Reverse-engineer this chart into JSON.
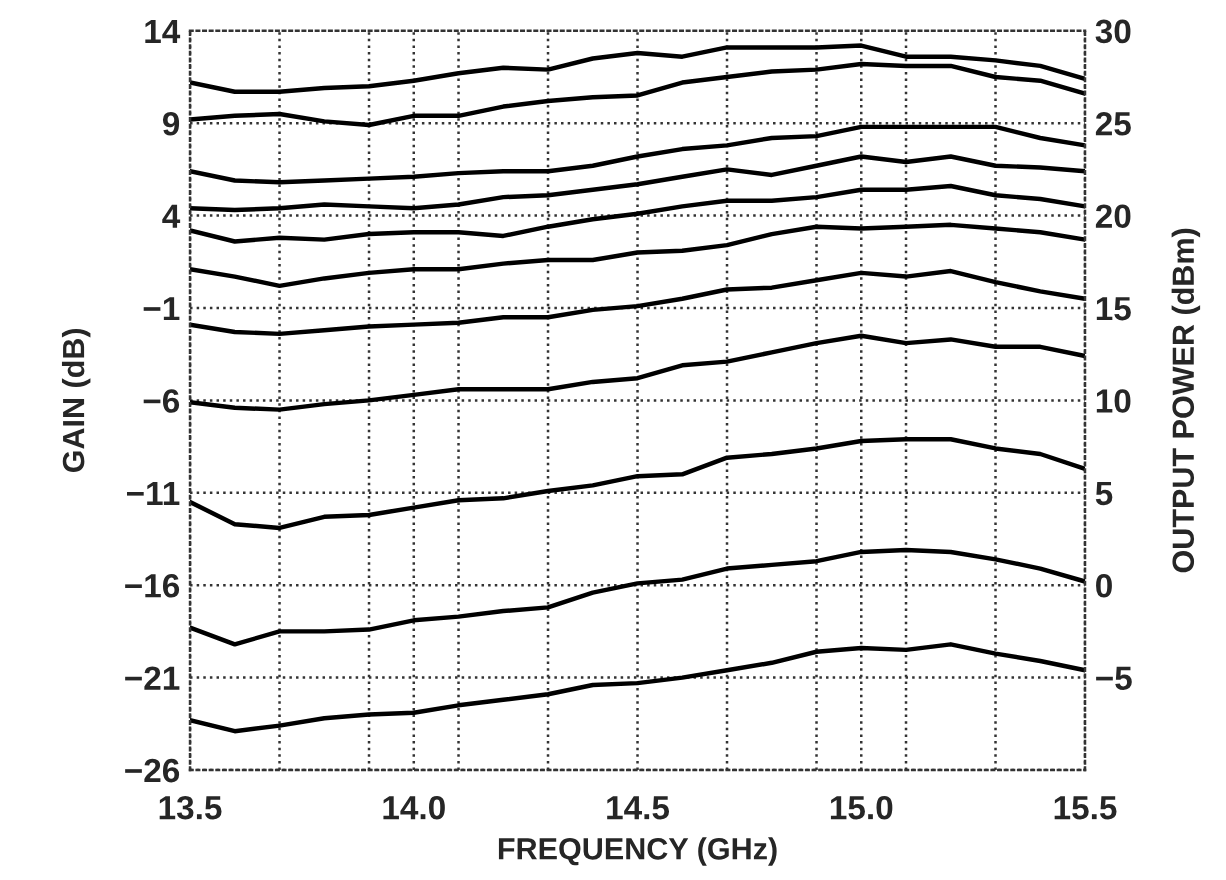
{
  "chart_data": {
    "type": "line",
    "xlabel": "FREQUENCY (GHz)",
    "ylabel": "GAIN (dB)",
    "y2label": "OUTPUT POWER (dBm)",
    "x": [
      13.5,
      13.6,
      13.7,
      13.8,
      13.9,
      14.0,
      14.1,
      14.2,
      14.3,
      14.4,
      14.5,
      14.6,
      14.7,
      14.8,
      14.9,
      15.0,
      15.1,
      15.2,
      15.3,
      15.4,
      15.5
    ],
    "series": [
      {
        "color": "#000000",
        "values": [
          11.2,
          10.7,
          10.7,
          10.9,
          11.0,
          11.3,
          11.7,
          12.0,
          11.9,
          12.5,
          12.8,
          12.6,
          13.1,
          13.1,
          13.1,
          13.2,
          12.6,
          12.6,
          12.4,
          12.1,
          11.4
        ]
      },
      {
        "color": "#000000",
        "values": [
          9.2,
          9.4,
          9.5,
          9.1,
          8.9,
          9.4,
          9.4,
          9.9,
          10.2,
          10.4,
          10.5,
          11.2,
          11.5,
          11.8,
          11.9,
          12.2,
          12.1,
          12.1,
          11.5,
          11.3,
          10.6
        ]
      },
      {
        "color": "#000000",
        "values": [
          6.4,
          5.9,
          5.8,
          5.9,
          6.0,
          6.1,
          6.3,
          6.4,
          6.4,
          6.7,
          7.2,
          7.6,
          7.8,
          8.2,
          8.3,
          8.8,
          8.8,
          8.8,
          8.8,
          8.2,
          7.8
        ]
      },
      {
        "color": "#000000",
        "values": [
          4.4,
          4.3,
          4.4,
          4.6,
          4.5,
          4.4,
          4.6,
          5.0,
          5.1,
          5.4,
          5.7,
          6.1,
          6.5,
          6.2,
          6.7,
          7.2,
          6.9,
          7.2,
          6.7,
          6.6,
          6.4
        ]
      },
      {
        "color": "#000000",
        "values": [
          3.2,
          2.6,
          2.8,
          2.7,
          3.0,
          3.1,
          3.1,
          2.9,
          3.4,
          3.8,
          4.1,
          4.5,
          4.8,
          4.8,
          5.0,
          5.4,
          5.4,
          5.6,
          5.1,
          4.9,
          4.5
        ]
      },
      {
        "color": "#000000",
        "values": [
          1.1,
          0.7,
          0.2,
          0.6,
          0.9,
          1.1,
          1.1,
          1.4,
          1.6,
          1.6,
          2.0,
          2.1,
          2.4,
          3.0,
          3.4,
          3.3,
          3.4,
          3.5,
          3.3,
          3.1,
          2.7
        ]
      },
      {
        "color": "#000000",
        "values": [
          -1.9,
          -2.3,
          -2.4,
          -2.2,
          -2.0,
          -1.9,
          -1.8,
          -1.5,
          -1.5,
          -1.1,
          -0.9,
          -0.5,
          0.0,
          0.1,
          0.5,
          0.9,
          0.7,
          1.0,
          0.4,
          -0.1,
          -0.5
        ]
      },
      {
        "color": "#000000",
        "values": [
          -6.1,
          -6.4,
          -6.5,
          -6.2,
          -6.0,
          -5.7,
          -5.4,
          -5.4,
          -5.4,
          -5.0,
          -4.8,
          -4.1,
          -3.9,
          -3.4,
          -2.9,
          -2.5,
          -2.9,
          -2.7,
          -3.1,
          -3.1,
          -3.6
        ]
      },
      {
        "color": "#000000",
        "values": [
          -11.5,
          -12.7,
          -12.9,
          -12.3,
          -12.2,
          -11.8,
          -11.4,
          -11.3,
          -10.9,
          -10.6,
          -10.1,
          -10.0,
          -9.1,
          -8.9,
          -8.6,
          -8.2,
          -8.1,
          -8.1,
          -8.6,
          -8.9,
          -9.7
        ]
      },
      {
        "color": "#000000",
        "values": [
          -18.3,
          -19.2,
          -18.5,
          -18.5,
          -18.4,
          -17.9,
          -17.7,
          -17.4,
          -17.2,
          -16.4,
          -15.9,
          -15.7,
          -15.1,
          -14.9,
          -14.7,
          -14.2,
          -14.1,
          -14.2,
          -14.6,
          -15.1,
          -15.8
        ]
      },
      {
        "color": "#000000",
        "values": [
          -23.3,
          -23.9,
          -23.6,
          -23.2,
          -23.0,
          -22.9,
          -22.5,
          -22.2,
          -21.9,
          -21.4,
          -21.3,
          -21.0,
          -20.6,
          -20.2,
          -19.6,
          -19.4,
          -19.5,
          -19.2,
          -19.7,
          -20.1,
          -20.6
        ]
      }
    ],
    "xlim": [
      13.5,
      15.5
    ],
    "xticks": [
      {
        "value": 13.5,
        "label": "13.5"
      },
      {
        "value": 13.7,
        "label": null
      },
      {
        "value": 13.9,
        "label": null
      },
      {
        "value": 14.0,
        "label": "14.0"
      },
      {
        "value": 14.1,
        "label": null
      },
      {
        "value": 14.3,
        "label": null
      },
      {
        "value": 14.5,
        "label": "14.5"
      },
      {
        "value": 14.7,
        "label": null
      },
      {
        "value": 14.9,
        "label": null
      },
      {
        "value": 15.0,
        "label": "15.0"
      },
      {
        "value": 15.1,
        "label": null
      },
      {
        "value": 15.3,
        "label": null
      },
      {
        "value": 15.5,
        "label": "15.5"
      }
    ],
    "ylim": [
      -26,
      14
    ],
    "yticks": [
      {
        "value": 14,
        "label": "14"
      },
      {
        "value": 9,
        "label": "9"
      },
      {
        "value": 4,
        "label": "4"
      },
      {
        "value": -1,
        "label": "−1"
      },
      {
        "value": -6,
        "label": "−6"
      },
      {
        "value": -11,
        "label": "−11"
      },
      {
        "value": -16,
        "label": "−16"
      },
      {
        "value": -21,
        "label": "−21"
      },
      {
        "value": -26,
        "label": "−26"
      }
    ],
    "y2lim": [
      -10,
      30
    ],
    "y2ticks": [
      30,
      25,
      20,
      15,
      10,
      5,
      0,
      {
        "value": -5,
        "label": "−5"
      }
    ],
    "grid": true,
    "legend": false,
    "marker": "none",
    "line_style": "solid"
  }
}
